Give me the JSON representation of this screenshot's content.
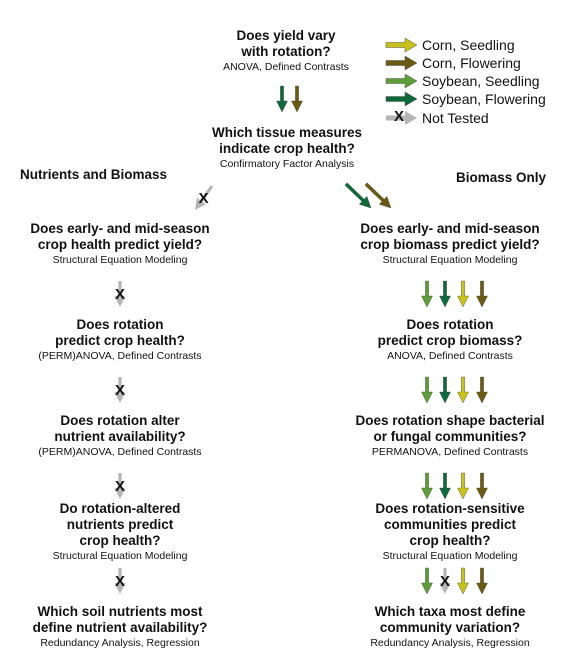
{
  "colors": {
    "corn_seedling": "#c8c11a",
    "corn_flowering": "#6b5a12",
    "soy_seedling": "#5e9e3a",
    "soy_flowering": "#0f6a3a",
    "not_tested": "#b5b5b5"
  },
  "legend": [
    {
      "label": "Corn, Seedling",
      "key": "corn_seedling"
    },
    {
      "label": "Corn, Flowering",
      "key": "corn_flowering"
    },
    {
      "label": "Soybean, Seedling",
      "key": "soy_seedling"
    },
    {
      "label": "Soybean, Flowering",
      "key": "soy_flowering"
    },
    {
      "label": "Not Tested",
      "key": "not_tested",
      "mark": "X"
    }
  ],
  "sections": {
    "left": "Nutrients and Biomass",
    "right": "Biomass Only"
  },
  "top_nodes": [
    {
      "q": [
        "Does yield vary",
        "with rotation?"
      ],
      "m": "ANOVA, Defined Contrasts"
    },
    {
      "q": [
        "Which tissue measures",
        "indicate crop health?"
      ],
      "m": "Confirmatory Factor Analysis"
    }
  ],
  "left_nodes": [
    {
      "q": [
        "Does early- and mid-season",
        "crop health predict yield?"
      ],
      "m": "Structural Equation Modeling"
    },
    {
      "q": [
        "Does rotation",
        "predict crop health?"
      ],
      "m": "(PERM)ANOVA, Defined Contrasts"
    },
    {
      "q": [
        "Does rotation alter",
        "nutrient availability?"
      ],
      "m": "(PERM)ANOVA, Defined Contrasts"
    },
    {
      "q": [
        "Do rotation-altered",
        "nutrients predict",
        "crop health?"
      ],
      "m": "Structural Equation Modeling"
    },
    {
      "q": [
        "Which soil nutrients most",
        "define nutrient availability?"
      ],
      "m": "Redundancy Analysis, Regression"
    }
  ],
  "right_nodes": [
    {
      "q": [
        "Does early- and mid-season",
        "crop biomass predict yield?"
      ],
      "m": "Structural Equation Modeling"
    },
    {
      "q": [
        "Does rotation",
        "predict crop biomass?"
      ],
      "m": "ANOVA, Defined Contrasts"
    },
    {
      "q": [
        "Does rotation shape bacterial",
        "or fungal communities?"
      ],
      "m": "PERMANOVA, Defined Contrasts"
    },
    {
      "q": [
        "Does rotation-sensitive",
        "communities predict",
        "crop health?"
      ],
      "m": "Structural Equation Modeling"
    },
    {
      "q": [
        "Which taxa most define",
        "community variation?"
      ],
      "m": "Redundancy Analysis, Regression"
    }
  ],
  "not_tested_mark": "X"
}
